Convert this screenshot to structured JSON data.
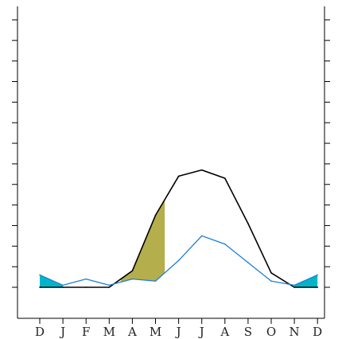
{
  "chart_data": {
    "type": "line",
    "title": "",
    "xlabel": "",
    "ylabel": "",
    "categories": [
      "D",
      "J",
      "F",
      "M",
      "A",
      "M",
      "J",
      "J",
      "A",
      "S",
      "O",
      "N",
      "D"
    ],
    "ylim": [
      0,
      14
    ],
    "y_ticks": [
      0,
      1,
      2,
      3,
      4,
      5,
      6,
      7,
      8,
      9,
      10,
      11,
      12,
      13,
      14
    ],
    "grid": false,
    "legend": "none",
    "series": [
      {
        "values": [
          0,
          0,
          0,
          0,
          0.8,
          3.5,
          5.4,
          5.7,
          5.3,
          3.1,
          0.7,
          0,
          0
        ],
        "color": "#000000"
      },
      {
        "values": [
          0.6,
          0.1,
          0.4,
          0.1,
          0.4,
          0.3,
          1.3,
          2.5,
          2.1,
          1.2,
          0.3,
          0.1,
          0.6
        ],
        "color": "#1f7fd6"
      }
    ],
    "shaded_regions": [
      {
        "between": [
          0,
          1
        ],
        "x_range": [
          0,
          1
        ],
        "color": "#00b5c8"
      },
      {
        "between": [
          0,
          1
        ],
        "x_range": [
          3.5,
          5.4
        ],
        "color": "#b5ae4c"
      },
      {
        "between": [
          0,
          1
        ],
        "x_range": [
          11,
          12
        ],
        "color": "#00b5c8"
      }
    ],
    "colors": {
      "axis": "#000000",
      "blue": "#1f7fd6",
      "teal_fill": "#00b5c8",
      "olive_fill": "#b5ae4c"
    }
  }
}
